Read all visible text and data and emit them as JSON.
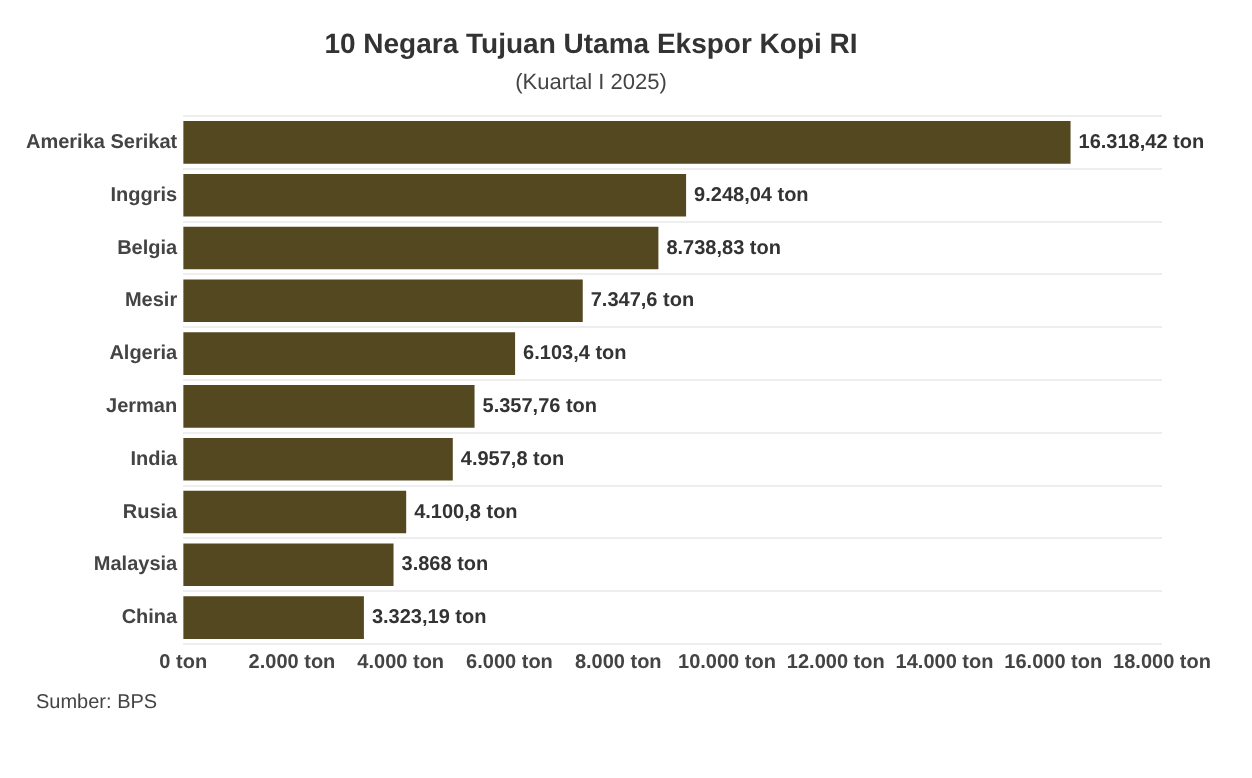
{
  "chart_data": {
    "type": "bar",
    "orientation": "horizontal",
    "title": "10 Negara Tujuan Utama Ekspor Kopi RI",
    "subtitle": "(Kuartal I 2025)",
    "categories": [
      "Amerika Serikat",
      "Inggris",
      "Belgia",
      "Mesir",
      "Algeria",
      "Jerman",
      "India",
      "Rusia",
      "Malaysia",
      "China"
    ],
    "values": [
      16318.42,
      9248.04,
      8738.83,
      7347.6,
      6103.4,
      5357.76,
      4957.8,
      4100.8,
      3868,
      3323.19
    ],
    "value_labels": [
      "16.318,42 ton",
      "9.248,04 ton",
      "8.738,83 ton",
      "7.347,6 ton",
      "6.103,4 ton",
      "5.357,76 ton",
      "4.957,8 ton",
      "4.100,8 ton",
      "3.868 ton",
      "3.323,19 ton"
    ],
    "color": "#544821",
    "xlim": [
      0,
      18000
    ],
    "xticks": [
      {
        "value": 0,
        "label": "0 ton"
      },
      {
        "value": 2000,
        "label": "2.000 ton"
      },
      {
        "value": 4000,
        "label": "4.000 ton"
      },
      {
        "value": 6000,
        "label": "6.000 ton"
      },
      {
        "value": 8000,
        "label": "8.000 ton"
      },
      {
        "value": 10000,
        "label": "10.000 ton"
      },
      {
        "value": 12000,
        "label": "12.000 ton"
      },
      {
        "value": 14000,
        "label": "14.000 ton"
      },
      {
        "value": 16000,
        "label": "16.000 ton"
      },
      {
        "value": 18000,
        "label": "18.000 ton"
      }
    ],
    "grid": "y",
    "legend": false,
    "annotations": [
      "Sumber: BPS"
    ]
  }
}
